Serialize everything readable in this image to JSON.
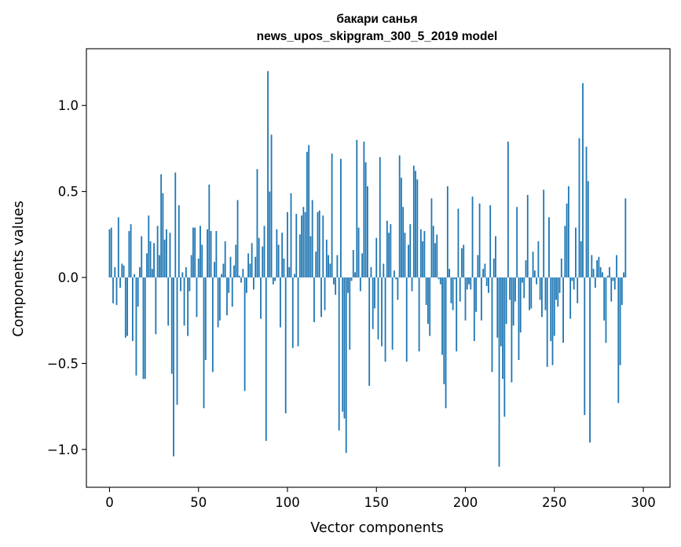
{
  "chart_data": {
    "type": "bar",
    "title": "бакари санья",
    "subtitle": "news_upos_skipgram_300_5_2019 model",
    "xlabel": "Vector components",
    "ylabel": "Components values",
    "xlim": [
      -13,
      315
    ],
    "ylim": [
      -1.22,
      1.33
    ],
    "xticks": [
      0,
      50,
      100,
      150,
      200,
      250,
      300
    ],
    "xtick_labels": [
      "0",
      "50",
      "100",
      "150",
      "200",
      "250",
      "300"
    ],
    "yticks": [
      -1.0,
      -0.5,
      0.0,
      0.5,
      1.0
    ],
    "ytick_labels": [
      "−1.0",
      "−0.5",
      "0.0",
      "0.5",
      "1.0"
    ],
    "grid": false,
    "bar_color": "#1f77b4",
    "values": [
      0.28,
      0.29,
      -0.15,
      0.06,
      -0.16,
      0.35,
      -0.06,
      0.08,
      0.07,
      -0.35,
      -0.34,
      0.27,
      0.31,
      -0.37,
      0.02,
      -0.57,
      -0.17,
      0.06,
      0.24,
      -0.59,
      -0.59,
      0.14,
      0.36,
      0.21,
      0.05,
      0.2,
      -0.33,
      0.3,
      0.13,
      0.6,
      0.49,
      0.22,
      0.28,
      -0.28,
      0.26,
      -0.56,
      -1.04,
      0.61,
      -0.74,
      0.42,
      -0.08,
      0.03,
      -0.28,
      0.06,
      -0.34,
      -0.08,
      0.13,
      0.29,
      0.29,
      -0.23,
      0.11,
      0.3,
      0.19,
      -0.76,
      -0.48,
      0.28,
      0.54,
      0.27,
      -0.55,
      0.09,
      0.27,
      -0.29,
      -0.25,
      0.02,
      0.08,
      0.21,
      -0.22,
      -0.09,
      0.12,
      -0.17,
      0.07,
      0.19,
      0.45,
      0.01,
      -0.03,
      0.05,
      -0.66,
      -0.09,
      0.14,
      0.08,
      0.2,
      -0.07,
      0.12,
      0.63,
      0.23,
      -0.24,
      0.18,
      0.3,
      -0.95,
      1.2,
      0.5,
      0.83,
      -0.04,
      -0.02,
      0.28,
      0.19,
      -0.29,
      0.26,
      0.11,
      -0.79,
      0.38,
      0.06,
      0.49,
      -0.41,
      0.02,
      0.37,
      -0.4,
      0.25,
      0.36,
      0.41,
      0.38,
      0.73,
      0.77,
      0.24,
      0.45,
      -0.26,
      0.15,
      0.38,
      0.39,
      -0.23,
      0.36,
      -0.19,
      0.22,
      0.13,
      0.08,
      0.72,
      -0.04,
      -0.1,
      0.13,
      -0.89,
      0.69,
      -0.78,
      -0.82,
      -1.02,
      -0.09,
      -0.42,
      -0.02,
      0.16,
      0.03,
      0.8,
      0.29,
      -0.08,
      0.14,
      0.79,
      0.67,
      0.53,
      -0.63,
      0.06,
      -0.3,
      -0.18,
      0.23,
      -0.36,
      0.7,
      -0.4,
      0.08,
      -0.49,
      0.33,
      0.26,
      0.31,
      -0.42,
      0.04,
      -0.01,
      -0.13,
      0.71,
      0.58,
      0.41,
      0.26,
      -0.49,
      0.19,
      0.31,
      -0.08,
      0.65,
      0.62,
      0.57,
      -0.43,
      0.28,
      0.21,
      0.27,
      -0.16,
      -0.27,
      -0.34,
      0.46,
      0.3,
      0.2,
      0.25,
      -0.01,
      -0.04,
      -0.45,
      -0.62,
      -0.76,
      0.53,
      0.05,
      -0.15,
      -0.19,
      -0.01,
      -0.43,
      0.4,
      -0.14,
      0.17,
      0.19,
      -0.25,
      -0.07,
      -0.04,
      -0.07,
      0.47,
      -0.37,
      -0.2,
      0.13,
      0.43,
      -0.25,
      0.05,
      0.08,
      -0.05,
      -0.09,
      0.42,
      -0.55,
      0.11,
      0.24,
      -0.35,
      -1.1,
      -0.4,
      -0.59,
      -0.81,
      -0.27,
      0.79,
      -0.13,
      -0.61,
      -0.28,
      -0.14,
      0.41,
      -0.48,
      -0.32,
      -0.03,
      -0.12,
      0.1,
      0.48,
      -0.19,
      -0.18,
      0.15,
      0.04,
      -0.04,
      0.21,
      -0.13,
      -0.23,
      0.51,
      -0.19,
      -0.52,
      0.35,
      -0.37,
      -0.51,
      -0.34,
      -0.13,
      -0.17,
      -0.09,
      0.11,
      -0.38,
      0.3,
      0.43,
      0.53,
      -0.24,
      -0.02,
      -0.07,
      0.29,
      -0.15,
      0.81,
      0.21,
      1.13,
      -0.8,
      0.76,
      0.56,
      -0.96,
      0.13,
      0.05,
      -0.06,
      0.1,
      0.12,
      0.06,
      0.03,
      -0.25,
      -0.38,
      0.01,
      0.06,
      -0.14,
      -0.02,
      -0.07,
      0.13,
      -0.73,
      -0.51,
      -0.16,
      0.03,
      0.46
    ]
  }
}
